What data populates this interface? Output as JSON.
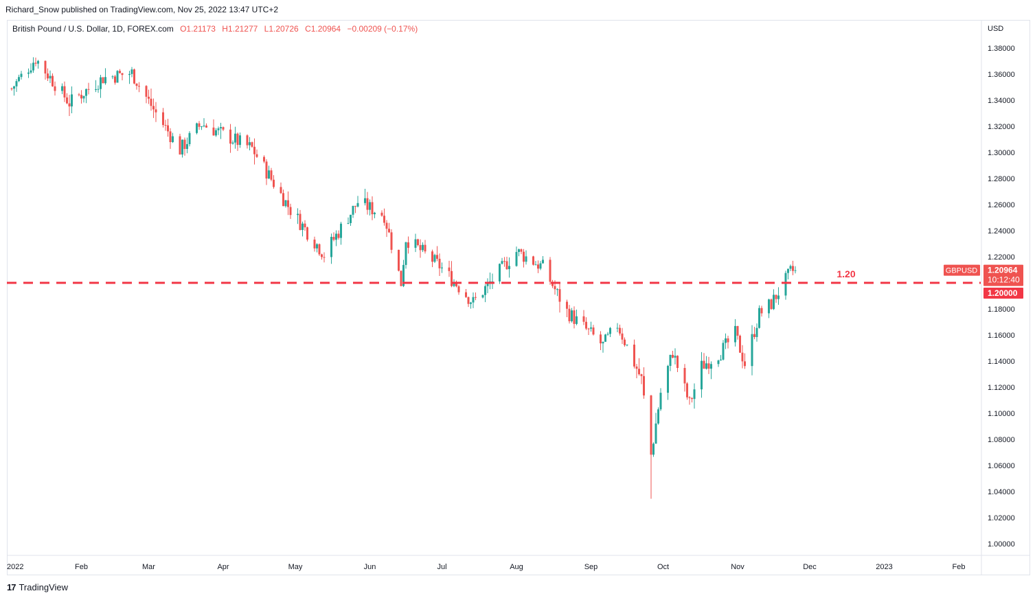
{
  "publisher_line": "Richard_Snow published on TradingView.com, Nov 25, 2022 13:47 UTC+2",
  "legend": {
    "symbol": "British Pound / U.S. Dollar, 1D, FOREX.com",
    "open": "O1.21173",
    "high": "H1.21277",
    "low": "L1.20726",
    "close": "C1.20964",
    "change": "−0.00209 (−0.17%)"
  },
  "currency_label": "USD",
  "ticker_badge": "GBPUSD",
  "last_price": "1.20964",
  "countdown": "10:12:40",
  "level_price": "1.20000",
  "level_label": "1.20",
  "footer_brand": "TradingView",
  "footer_icon": "tradingview-logo-icon",
  "colors": {
    "up": "#26a69a",
    "down": "#ef5350",
    "level_line": "#f23645"
  },
  "chart_data": {
    "type": "candlestick",
    "title": "British Pound / U.S. Dollar, 1D, FOREX.com",
    "ylabel": "USD",
    "ylim": [
      0.99,
      1.39
    ],
    "y_ticks": [
      "1.00000",
      "1.02000",
      "1.04000",
      "1.06000",
      "1.08000",
      "1.10000",
      "1.12000",
      "1.14000",
      "1.16000",
      "1.18000",
      "1.20000",
      "1.22000",
      "1.24000",
      "1.26000",
      "1.28000",
      "1.30000",
      "1.32000",
      "1.34000",
      "1.36000",
      "1.38000"
    ],
    "x_ticks": [
      "2022",
      "Feb",
      "Mar",
      "Apr",
      "May",
      "Jun",
      "Jul",
      "Aug",
      "Sep",
      "Oct",
      "Nov",
      "Dec",
      "2023",
      "Feb"
    ],
    "horizontal_level": {
      "value": 1.2,
      "label": "1.20",
      "style": "dashed"
    },
    "series": [
      {
        "name": "GBPUSD",
        "trend_anchors": [
          {
            "date": "2022-01-03",
            "close": 1.349
          },
          {
            "date": "2022-01-13",
            "close": 1.372
          },
          {
            "date": "2022-01-27",
            "close": 1.338
          },
          {
            "date": "2022-02-10",
            "close": 1.357
          },
          {
            "date": "2022-02-22",
            "close": 1.361
          },
          {
            "date": "2022-03-03",
            "close": 1.333
          },
          {
            "date": "2022-03-14",
            "close": 1.302
          },
          {
            "date": "2022-03-23",
            "close": 1.322
          },
          {
            "date": "2022-04-13",
            "close": 1.303
          },
          {
            "date": "2022-04-29",
            "close": 1.256
          },
          {
            "date": "2022-05-13",
            "close": 1.222
          },
          {
            "date": "2022-05-27",
            "close": 1.262
          },
          {
            "date": "2022-06-07",
            "close": 1.252
          },
          {
            "date": "2022-06-14",
            "close": 1.2
          },
          {
            "date": "2022-06-16",
            "close": 1.234
          },
          {
            "date": "2022-06-30",
            "close": 1.213
          },
          {
            "date": "2022-07-14",
            "close": 1.185
          },
          {
            "date": "2022-08-01",
            "close": 1.224
          },
          {
            "date": "2022-08-12",
            "close": 1.212
          },
          {
            "date": "2022-08-22",
            "close": 1.178
          },
          {
            "date": "2022-09-06",
            "close": 1.152
          },
          {
            "date": "2022-09-12",
            "close": 1.168
          },
          {
            "date": "2022-09-22",
            "close": 1.126
          },
          {
            "date": "2022-09-26",
            "close": 1.068
          },
          {
            "date": "2022-09-30",
            "close": 1.116
          },
          {
            "date": "2022-10-05",
            "close": 1.147
          },
          {
            "date": "2022-10-12",
            "close": 1.107
          },
          {
            "date": "2022-10-17",
            "close": 1.136
          },
          {
            "date": "2022-10-25",
            "close": 1.147
          },
          {
            "date": "2022-10-31",
            "close": 1.161
          },
          {
            "date": "2022-11-04",
            "close": 1.138
          },
          {
            "date": "2022-11-10",
            "close": 1.176
          },
          {
            "date": "2022-11-15",
            "close": 1.184
          },
          {
            "date": "2022-11-23",
            "close": 1.208
          },
          {
            "date": "2022-11-25",
            "close": 1.21
          }
        ]
      }
    ]
  }
}
